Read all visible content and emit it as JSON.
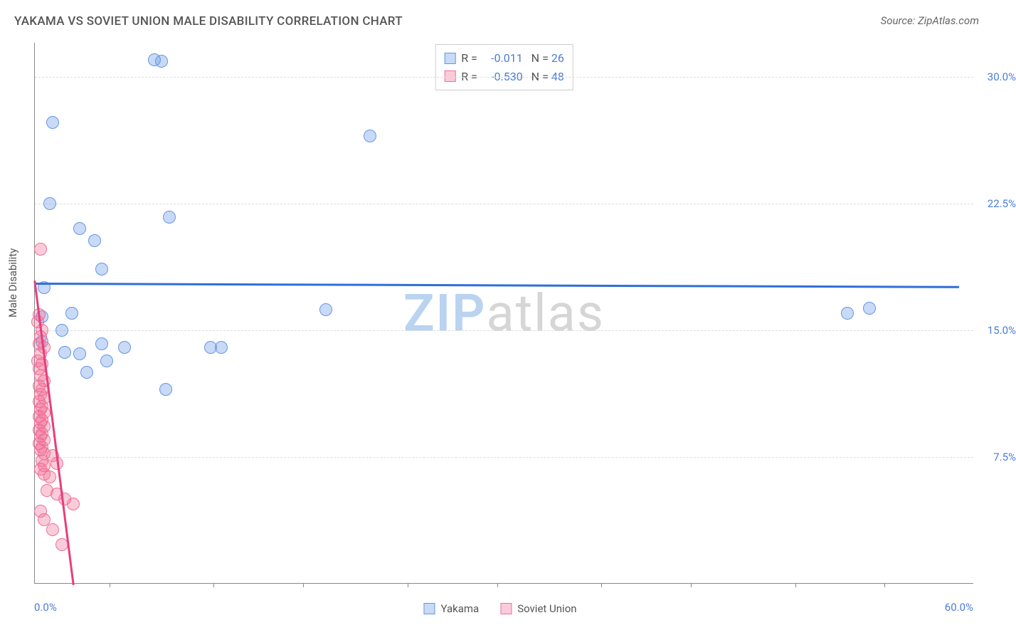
{
  "title": "YAKAMA VS SOVIET UNION MALE DISABILITY CORRELATION CHART",
  "source": "Source: ZipAtlas.com",
  "y_axis_title": "Male Disability",
  "watermark": {
    "text1": "ZIP",
    "text2": "atlas",
    "color1": "#b9d3f0",
    "color2": "#d6d6d6"
  },
  "colors": {
    "series1_fill": "rgba(100,150,230,0.35)",
    "series1_stroke": "#6496e6",
    "series2_fill": "rgba(240,110,150,0.35)",
    "series2_stroke": "#f06e96",
    "trend1": "#2e6fd9",
    "trend2": "#e83e7a",
    "yaxis_label": "#4a7ddb",
    "xaxis_label": "#4a7ddb",
    "legend_text": "#555",
    "legend_value": "#4a7ddb",
    "grid": "#ddd"
  },
  "chart": {
    "type": "scatter",
    "x_min": 0,
    "x_max": 63,
    "y_min": 0,
    "y_max": 32,
    "y_ticks": [
      7.5,
      15.0,
      22.5,
      30.0
    ],
    "y_tick_labels": [
      "7.5%",
      "15.0%",
      "22.5%",
      "30.0%"
    ],
    "x_tick_positions": [
      5,
      12,
      18,
      25,
      31,
      38,
      44,
      51,
      57
    ],
    "x_min_label": "0.0%",
    "x_max_label": "60.0%",
    "marker_radius": 9,
    "marker_stroke_width": 1.5,
    "trend_width": 2.5
  },
  "legend_top": {
    "rows": [
      {
        "swatch_fill": "rgba(100,150,230,0.35)",
        "swatch_stroke": "#6496e6",
        "r_label": "R =",
        "r_value": "-0.011",
        "n_label": "N =",
        "n_value": "26"
      },
      {
        "swatch_fill": "rgba(240,110,150,0.35)",
        "swatch_stroke": "#f06e96",
        "r_label": "R =",
        "r_value": "-0.530",
        "n_label": "N =",
        "n_value": "48"
      }
    ]
  },
  "legend_bottom": {
    "items": [
      {
        "label": "Yakama",
        "swatch_fill": "rgba(100,150,230,0.35)",
        "swatch_stroke": "#6496e6"
      },
      {
        "label": "Soviet Union",
        "swatch_fill": "rgba(240,110,150,0.35)",
        "swatch_stroke": "#f06e96"
      }
    ]
  },
  "series": [
    {
      "name": "Yakama",
      "color_fill": "rgba(100,150,230,0.35)",
      "color_stroke": "#6496e6",
      "points": [
        [
          8.0,
          31.0
        ],
        [
          8.5,
          30.9
        ],
        [
          1.2,
          27.3
        ],
        [
          22.5,
          26.5
        ],
        [
          1.0,
          22.5
        ],
        [
          9.0,
          21.7
        ],
        [
          3.0,
          21.0
        ],
        [
          4.0,
          20.3
        ],
        [
          4.5,
          18.6
        ],
        [
          0.6,
          17.5
        ],
        [
          2.5,
          16.0
        ],
        [
          0.5,
          15.8
        ],
        [
          19.5,
          16.2
        ],
        [
          54.5,
          16.0
        ],
        [
          56.0,
          16.3
        ],
        [
          1.8,
          15.0
        ],
        [
          0.5,
          14.3
        ],
        [
          11.8,
          14.0
        ],
        [
          12.5,
          14.0
        ],
        [
          2.0,
          13.7
        ],
        [
          3.0,
          13.6
        ],
        [
          4.5,
          14.2
        ],
        [
          6.0,
          14.0
        ],
        [
          4.8,
          13.2
        ],
        [
          3.5,
          12.5
        ],
        [
          8.8,
          11.5
        ]
      ],
      "trend": {
        "x1": 0,
        "y1": 17.8,
        "x2": 62,
        "y2": 17.6
      }
    },
    {
      "name": "Soviet Union",
      "color_fill": "rgba(240,110,150,0.35)",
      "color_stroke": "#f06e96",
      "points": [
        [
          0.4,
          19.8
        ],
        [
          0.3,
          15.9
        ],
        [
          0.2,
          15.5
        ],
        [
          0.5,
          15.0
        ],
        [
          0.4,
          14.6
        ],
        [
          0.3,
          14.2
        ],
        [
          0.6,
          14.0
        ],
        [
          0.4,
          13.6
        ],
        [
          0.2,
          13.2
        ],
        [
          0.5,
          13.0
        ],
        [
          0.3,
          12.7
        ],
        [
          0.4,
          12.3
        ],
        [
          0.6,
          12.0
        ],
        [
          0.3,
          11.7
        ],
        [
          0.5,
          11.5
        ],
        [
          0.4,
          11.2
        ],
        [
          0.6,
          11.0
        ],
        [
          0.3,
          10.8
        ],
        [
          0.5,
          10.5
        ],
        [
          0.4,
          10.3
        ],
        [
          0.6,
          10.1
        ],
        [
          0.3,
          9.9
        ],
        [
          0.5,
          9.7
        ],
        [
          0.4,
          9.5
        ],
        [
          0.6,
          9.3
        ],
        [
          0.3,
          9.1
        ],
        [
          0.5,
          8.9
        ],
        [
          0.4,
          8.7
        ],
        [
          0.6,
          8.5
        ],
        [
          0.3,
          8.3
        ],
        [
          0.5,
          8.1
        ],
        [
          0.4,
          7.9
        ],
        [
          0.6,
          7.7
        ],
        [
          0.5,
          7.3
        ],
        [
          1.2,
          7.6
        ],
        [
          0.6,
          7.0
        ],
        [
          1.5,
          7.1
        ],
        [
          0.4,
          6.8
        ],
        [
          0.6,
          6.5
        ],
        [
          1.0,
          6.3
        ],
        [
          0.8,
          5.5
        ],
        [
          1.5,
          5.3
        ],
        [
          2.0,
          5.0
        ],
        [
          2.6,
          4.7
        ],
        [
          0.4,
          4.3
        ],
        [
          0.6,
          3.8
        ],
        [
          1.2,
          3.2
        ],
        [
          1.8,
          2.3
        ]
      ],
      "trend": {
        "x1": 0,
        "y1": 18.0,
        "x2": 2.6,
        "y2": 0
      }
    }
  ]
}
